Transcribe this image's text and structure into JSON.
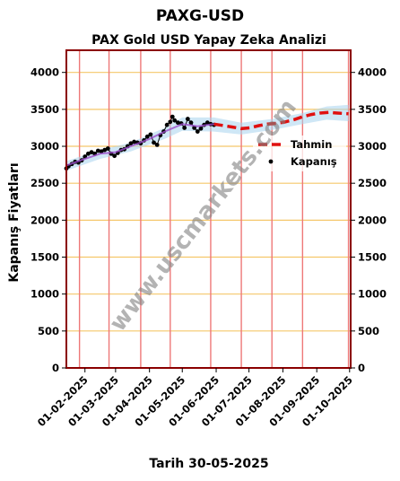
{
  "chart_data": {
    "type": "line",
    "suptitle": "PAXG-USD",
    "title": "PAX Gold USD Yapay Zeka Analizi",
    "xlabel": "Tarih 30-05-2025",
    "ylabel": "Kapanış Fiyatları",
    "watermark": "www.uscmarkets.com",
    "ylim": [
      0,
      4300
    ],
    "xlim": [
      "2025-01-15",
      "2025-10-02"
    ],
    "y_ticks": [
      0,
      500,
      1000,
      1500,
      2000,
      2500,
      3000,
      3500,
      4000
    ],
    "x_ticks": [
      "2025-02-01",
      "2025-03-01",
      "2025-04-01",
      "2025-05-01",
      "2025-06-01",
      "2025-07-01",
      "2025-08-01",
      "2025-09-01",
      "2025-10-01"
    ],
    "x_tick_labels": [
      "01-02-2025",
      "01-03-2025",
      "01-04-2025",
      "01-05-2025",
      "01-06-2025",
      "01-07-2025",
      "01-08-2025",
      "01-09-2025",
      "01-10-2025"
    ],
    "vertical_lines": [
      "2025-01-27",
      "2025-02-23",
      "2025-03-24",
      "2025-04-20",
      "2025-05-27",
      "2025-06-24",
      "2025-07-22",
      "2025-08-19",
      "2025-09-30"
    ],
    "grid": "horizontal",
    "legend": {
      "placement": "right",
      "entries": [
        "Tahmin",
        "Kapanış"
      ]
    },
    "series": [
      {
        "name": "Kapanış",
        "style": "points",
        "color": "#000000",
        "points": [
          [
            "2025-01-15",
            2700
          ],
          [
            "2025-01-17",
            2730
          ],
          [
            "2025-01-20",
            2760
          ],
          [
            "2025-01-23",
            2790
          ],
          [
            "2025-01-26",
            2780
          ],
          [
            "2025-01-29",
            2810
          ],
          [
            "2025-02-01",
            2860
          ],
          [
            "2025-02-04",
            2900
          ],
          [
            "2025-02-07",
            2920
          ],
          [
            "2025-02-10",
            2900
          ],
          [
            "2025-02-13",
            2940
          ],
          [
            "2025-02-16",
            2930
          ],
          [
            "2025-02-19",
            2950
          ],
          [
            "2025-02-22",
            2970
          ],
          [
            "2025-02-25",
            2900
          ],
          [
            "2025-02-28",
            2870
          ],
          [
            "2025-03-03",
            2910
          ],
          [
            "2025-03-06",
            2950
          ],
          [
            "2025-03-09",
            2960
          ],
          [
            "2025-03-12",
            3000
          ],
          [
            "2025-03-15",
            3040
          ],
          [
            "2025-03-18",
            3060
          ],
          [
            "2025-03-21",
            3050
          ],
          [
            "2025-03-24",
            3040
          ],
          [
            "2025-03-27",
            3080
          ],
          [
            "2025-03-30",
            3130
          ],
          [
            "2025-04-02",
            3160
          ],
          [
            "2025-04-05",
            3050
          ],
          [
            "2025-04-08",
            3020
          ],
          [
            "2025-04-11",
            3150
          ],
          [
            "2025-04-14",
            3200
          ],
          [
            "2025-04-17",
            3290
          ],
          [
            "2025-04-20",
            3330
          ],
          [
            "2025-04-22",
            3400
          ],
          [
            "2025-04-24",
            3350
          ],
          [
            "2025-04-27",
            3320
          ],
          [
            "2025-04-30",
            3310
          ],
          [
            "2025-05-03",
            3250
          ],
          [
            "2025-05-06",
            3370
          ],
          [
            "2025-05-09",
            3320
          ],
          [
            "2025-05-12",
            3250
          ],
          [
            "2025-05-15",
            3200
          ],
          [
            "2025-05-18",
            3240
          ],
          [
            "2025-05-21",
            3290
          ],
          [
            "2025-05-24",
            3320
          ],
          [
            "2025-05-27",
            3300
          ],
          [
            "2025-05-30",
            3290
          ]
        ]
      },
      {
        "name": "Tahmin",
        "style": "dashed",
        "color": "#e01010",
        "points": [
          [
            "2025-05-30",
            3300
          ],
          [
            "2025-06-08",
            3280
          ],
          [
            "2025-06-16",
            3260
          ],
          [
            "2025-06-24",
            3240
          ],
          [
            "2025-07-02",
            3250
          ],
          [
            "2025-07-10",
            3280
          ],
          [
            "2025-07-18",
            3300
          ],
          [
            "2025-07-26",
            3310
          ],
          [
            "2025-08-03",
            3330
          ],
          [
            "2025-08-11",
            3360
          ],
          [
            "2025-08-19",
            3400
          ],
          [
            "2025-08-27",
            3430
          ],
          [
            "2025-09-04",
            3450
          ],
          [
            "2025-09-12",
            3460
          ],
          [
            "2025-09-20",
            3450
          ],
          [
            "2025-09-30",
            3440
          ]
        ]
      },
      {
        "style": "line",
        "color": "#9b4dca",
        "points": [
          [
            "2025-01-15",
            2740
          ],
          [
            "2025-02-01",
            2830
          ],
          [
            "2025-02-15",
            2900
          ],
          [
            "2025-03-01",
            2920
          ],
          [
            "2025-03-15",
            3000
          ],
          [
            "2025-04-01",
            3100
          ],
          [
            "2025-04-15",
            3200
          ],
          [
            "2025-05-01",
            3300
          ],
          [
            "2025-05-15",
            3270
          ],
          [
            "2025-05-30",
            3300
          ]
        ]
      }
    ],
    "band": {
      "color": "#a8d4ee",
      "upper": [
        [
          "2025-01-15",
          2800
        ],
        [
          "2025-02-15",
          2950
        ],
        [
          "2025-03-15",
          3050
        ],
        [
          "2025-04-15",
          3250
        ],
        [
          "2025-05-01",
          3390
        ],
        [
          "2025-05-30",
          3390
        ],
        [
          "2025-06-24",
          3320
        ],
        [
          "2025-07-22",
          3370
        ],
        [
          "2025-08-19",
          3450
        ],
        [
          "2025-09-10",
          3540
        ],
        [
          "2025-09-30",
          3560
        ]
      ],
      "lower": [
        [
          "2025-01-15",
          2670
        ],
        [
          "2025-02-15",
          2830
        ],
        [
          "2025-03-15",
          2930
        ],
        [
          "2025-04-15",
          3100
        ],
        [
          "2025-05-01",
          3210
        ],
        [
          "2025-05-30",
          3200
        ],
        [
          "2025-06-24",
          3160
        ],
        [
          "2025-07-22",
          3220
        ],
        [
          "2025-08-19",
          3300
        ],
        [
          "2025-09-10",
          3360
        ],
        [
          "2025-09-30",
          3340
        ]
      ]
    },
    "colors": {
      "frame": "#8b0000",
      "grid_h": "#f5c76a",
      "grid_v": "#ee7878",
      "watermark": "#808080"
    }
  }
}
